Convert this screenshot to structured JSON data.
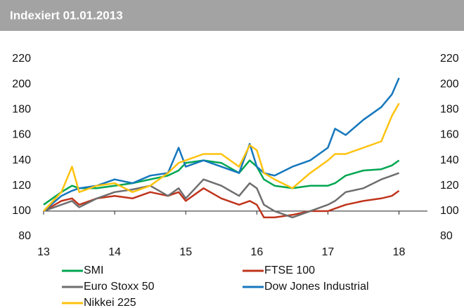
{
  "chart_data": {
    "type": "line",
    "title": "Indexiert 01.01.2013",
    "x": [
      13,
      13.25,
      13.4,
      13.5,
      13.75,
      14,
      14.25,
      14.5,
      14.75,
      14.9,
      15,
      15.25,
      15.5,
      15.75,
      15.9,
      16,
      16.1,
      16.25,
      16.5,
      16.75,
      17,
      17.1,
      17.25,
      17.5,
      17.75,
      17.9,
      18
    ],
    "series": [
      {
        "name": "SMI",
        "color": "#00a651",
        "values": [
          105,
          115,
          120,
          118,
          118,
          120,
          122,
          125,
          128,
          132,
          138,
          140,
          138,
          130,
          140,
          135,
          125,
          120,
          118,
          120,
          120,
          122,
          128,
          132,
          133,
          136,
          140
        ]
      },
      {
        "name": "FTSE 100",
        "color": "#c0341d",
        "values": [
          100,
          108,
          110,
          105,
          110,
          112,
          110,
          115,
          112,
          115,
          108,
          118,
          110,
          105,
          108,
          105,
          95,
          95,
          97,
          100,
          100,
          102,
          105,
          108,
          110,
          112,
          116
        ]
      },
      {
        "name": "Euro Stoxx 50",
        "color": "#6e6e6e",
        "values": [
          100,
          105,
          108,
          103,
          110,
          115,
          117,
          120,
          112,
          118,
          110,
          125,
          120,
          112,
          122,
          118,
          105,
          100,
          95,
          100,
          105,
          108,
          115,
          118,
          125,
          128,
          130
        ]
      },
      {
        "name": "Dow Jones Industrial",
        "color": "#1577bd",
        "values": [
          100,
          112,
          116,
          118,
          120,
          125,
          122,
          128,
          130,
          150,
          135,
          140,
          135,
          130,
          153,
          135,
          130,
          128,
          135,
          140,
          150,
          165,
          160,
          172,
          182,
          192,
          205
        ]
      },
      {
        "name": "Nikkei 225",
        "color": "#ffc20e",
        "values": [
          100,
          115,
          135,
          115,
          120,
          122,
          115,
          120,
          130,
          138,
          140,
          145,
          145,
          135,
          152,
          148,
          130,
          125,
          118,
          130,
          140,
          145,
          145,
          150,
          155,
          175,
          185
        ]
      }
    ],
    "xlim": [
      13,
      18.4
    ],
    "xticks": [
      13,
      14,
      15,
      16,
      17,
      18
    ],
    "ylim": [
      80,
      220
    ],
    "yticks": [
      80,
      100,
      120,
      140,
      160,
      180,
      200,
      220
    ],
    "y2lim": [
      80,
      220
    ],
    "y2ticks": [
      80,
      100,
      120,
      140,
      160,
      180,
      200,
      220
    ],
    "xaxis_crosses": 100,
    "grid": false
  }
}
